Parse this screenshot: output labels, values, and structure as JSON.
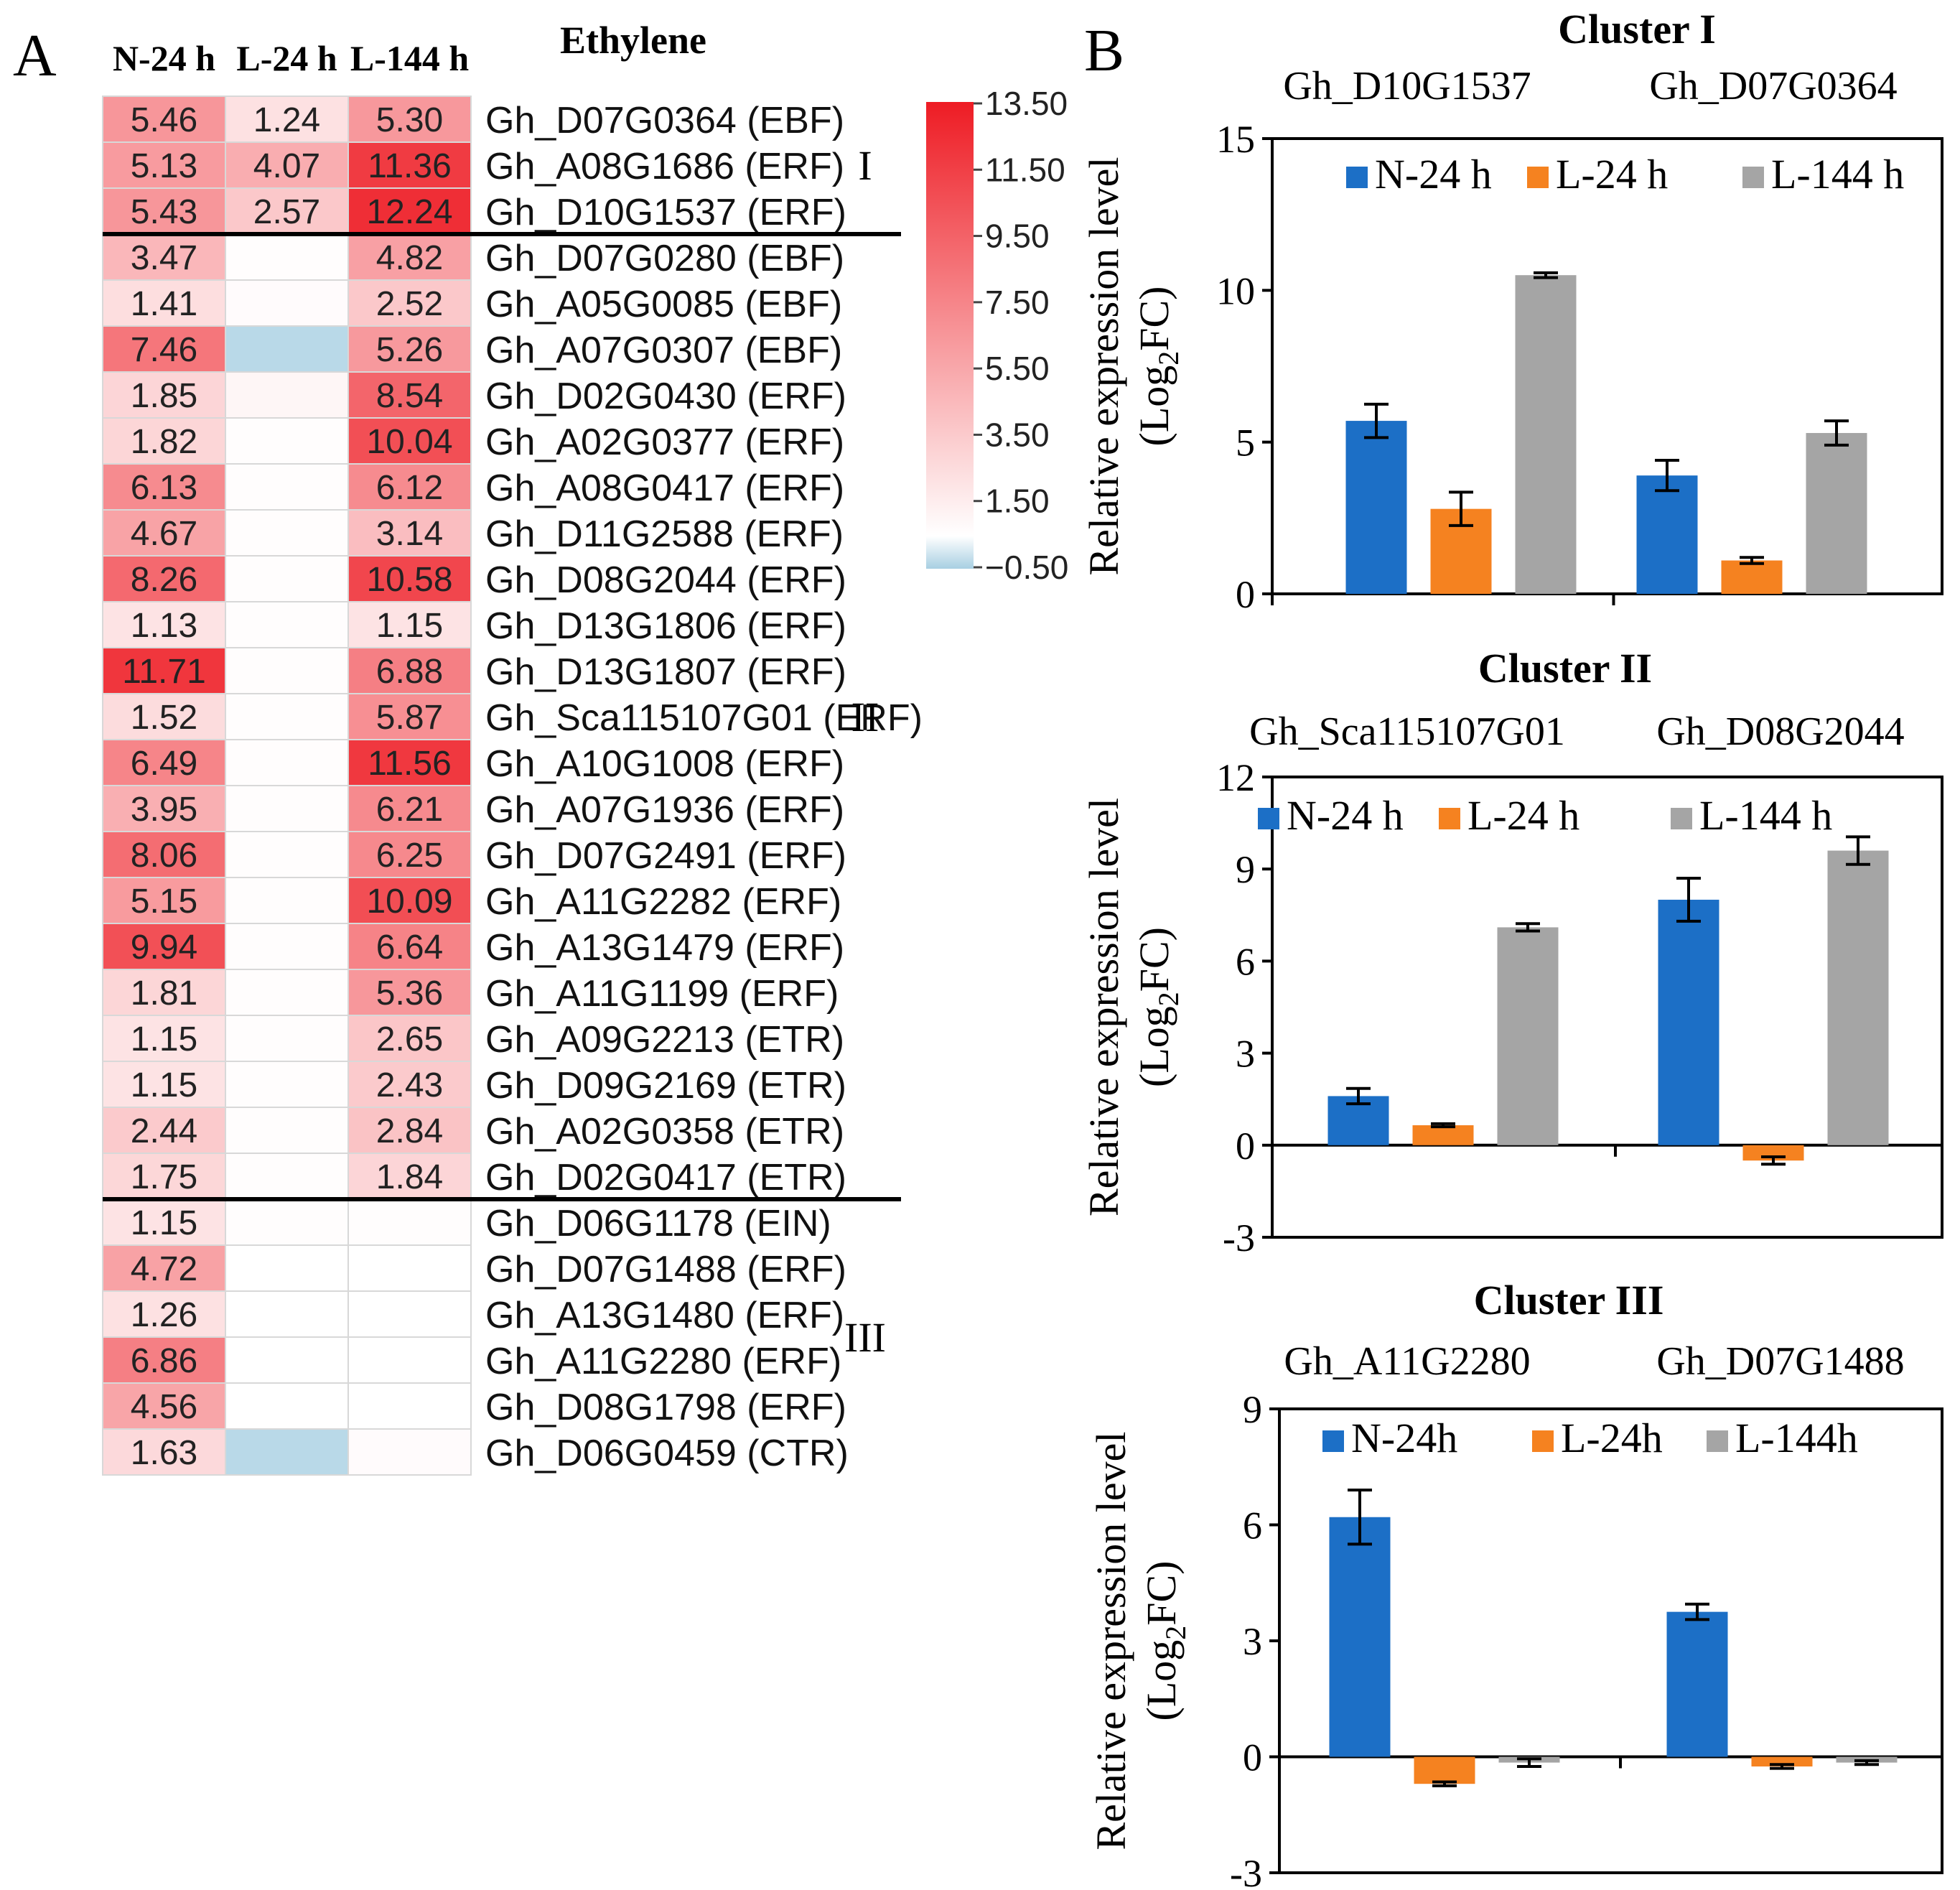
{
  "panel_a": {
    "label": "A",
    "title": "Ethylene",
    "columns": [
      "N-24 h",
      "L-24 h",
      "L-144 h"
    ],
    "scale_max_color": "#ee1c24",
    "scale_min_color": "#a8cfe2",
    "legend_ticks": [
      "13.50",
      "11.50",
      "9.50",
      "7.50",
      "5.50",
      "3.50",
      "1.50",
      "−0.50"
    ],
    "cluster_labels": [
      "I",
      "II",
      "III"
    ],
    "rows": [
      {
        "gene": "Gh_D07G0364 (EBF)",
        "text": [
          "5.46",
          "1.24",
          "5.30"
        ],
        "values": [
          5.46,
          1.24,
          5.3
        ],
        "cluster": "I"
      },
      {
        "gene": "Gh_A08G1686 (ERF)",
        "text": [
          "5.13",
          "4.07",
          "11.36"
        ],
        "values": [
          5.13,
          4.07,
          11.36
        ],
        "cluster": "I"
      },
      {
        "gene": "Gh_D10G1537 (ERF)",
        "text": [
          "5.43",
          "2.57",
          "12.24"
        ],
        "values": [
          5.43,
          2.57,
          12.24
        ],
        "cluster": "I"
      },
      {
        "gene": "Gh_D07G0280 (EBF)",
        "text": [
          "3.47",
          "",
          "4.82"
        ],
        "values": [
          3.47,
          0.05,
          4.82
        ],
        "cluster": "II"
      },
      {
        "gene": "Gh_A05G0085 (EBF)",
        "text": [
          "1.41",
          "",
          "2.52"
        ],
        "values": [
          1.41,
          0.1,
          2.52
        ],
        "cluster": "II"
      },
      {
        "gene": "Gh_A07G0307 (EBF)",
        "text": [
          "7.46",
          "",
          "5.26"
        ],
        "values": [
          7.46,
          -0.4,
          5.26
        ],
        "cluster": "II"
      },
      {
        "gene": "Gh_D02G0430 (ERF)",
        "text": [
          "1.85",
          "",
          "8.54"
        ],
        "values": [
          1.85,
          0.3,
          8.54
        ],
        "cluster": "II"
      },
      {
        "gene": "Gh_A02G0377 (ERF)",
        "text": [
          "1.82",
          "",
          "10.04"
        ],
        "values": [
          1.82,
          0.05,
          10.04
        ],
        "cluster": "II"
      },
      {
        "gene": "Gh_A08G0417 (ERF)",
        "text": [
          "6.13",
          "",
          "6.12"
        ],
        "values": [
          6.13,
          0.05,
          6.12
        ],
        "cluster": "II"
      },
      {
        "gene": "Gh_D11G2588 (ERF)",
        "text": [
          "4.67",
          "",
          "3.14"
        ],
        "values": [
          4.67,
          0.05,
          3.14
        ],
        "cluster": "II"
      },
      {
        "gene": "Gh_D08G2044 (ERF)",
        "text": [
          "8.26",
          "",
          "10.58"
        ],
        "values": [
          8.26,
          0.05,
          10.58
        ],
        "cluster": "II"
      },
      {
        "gene": "Gh_D13G1806 (ERF)",
        "text": [
          "1.13",
          "",
          "1.15"
        ],
        "values": [
          1.13,
          0.05,
          1.15
        ],
        "cluster": "II"
      },
      {
        "gene": "Gh_D13G1807 (ERF)",
        "text": [
          "11.71",
          "",
          "6.88"
        ],
        "values": [
          11.71,
          0.05,
          6.88
        ],
        "cluster": "II"
      },
      {
        "gene": "Gh_Sca115107G01 (ERF)",
        "text": [
          "1.52",
          "",
          "5.87"
        ],
        "values": [
          1.52,
          0.05,
          5.87
        ],
        "cluster": "II"
      },
      {
        "gene": "Gh_A10G1008 (ERF)",
        "text": [
          "6.49",
          "",
          "11.56"
        ],
        "values": [
          6.49,
          0.05,
          11.56
        ],
        "cluster": "II"
      },
      {
        "gene": "Gh_A07G1936 (ERF)",
        "text": [
          "3.95",
          "",
          "6.21"
        ],
        "values": [
          3.95,
          0.05,
          6.21
        ],
        "cluster": "II"
      },
      {
        "gene": "Gh_D07G2491 (ERF)",
        "text": [
          "8.06",
          "",
          "6.25"
        ],
        "values": [
          8.06,
          0.05,
          6.25
        ],
        "cluster": "II"
      },
      {
        "gene": "Gh_A11G2282 (ERF)",
        "text": [
          "5.15",
          "",
          "10.09"
        ],
        "values": [
          5.15,
          0.05,
          10.09
        ],
        "cluster": "II"
      },
      {
        "gene": "Gh_A13G1479 (ERF)",
        "text": [
          "9.94",
          "",
          "6.64"
        ],
        "values": [
          9.94,
          0.05,
          6.64
        ],
        "cluster": "II"
      },
      {
        "gene": "Gh_A11G1199 (ERF)",
        "text": [
          "1.81",
          "",
          "5.36"
        ],
        "values": [
          1.81,
          0.05,
          5.36
        ],
        "cluster": "II"
      },
      {
        "gene": "Gh_A09G2213 (ETR)",
        "text": [
          "1.15",
          "",
          "2.65"
        ],
        "values": [
          1.15,
          0.05,
          2.65
        ],
        "cluster": "II"
      },
      {
        "gene": "Gh_D09G2169 (ETR)",
        "text": [
          "1.15",
          "",
          "2.43"
        ],
        "values": [
          1.15,
          0.05,
          2.43
        ],
        "cluster": "II"
      },
      {
        "gene": "Gh_A02G0358 (ETR)",
        "text": [
          "2.44",
          "",
          "2.84"
        ],
        "values": [
          2.44,
          0.05,
          2.84
        ],
        "cluster": "II"
      },
      {
        "gene": "Gh_D02G0417 (ETR)",
        "text": [
          "1.75",
          "",
          "1.84"
        ],
        "values": [
          1.75,
          0.05,
          1.84
        ],
        "cluster": "II"
      },
      {
        "gene": "Gh_D06G1178 (EIN)",
        "text": [
          "1.15",
          "",
          ""
        ],
        "values": [
          1.15,
          0.05,
          0.05
        ],
        "cluster": "III"
      },
      {
        "gene": "Gh_D07G1488 (ERF)",
        "text": [
          "4.72",
          "",
          ""
        ],
        "values": [
          4.72,
          0.0,
          0.0
        ],
        "cluster": "III"
      },
      {
        "gene": "Gh_A13G1480 (ERF)",
        "text": [
          "1.26",
          "",
          ""
        ],
        "values": [
          1.26,
          0.0,
          0.0
        ],
        "cluster": "III"
      },
      {
        "gene": "Gh_A11G2280 (ERF)",
        "text": [
          "6.86",
          "",
          ""
        ],
        "values": [
          6.86,
          0.0,
          0.0
        ],
        "cluster": "III"
      },
      {
        "gene": "Gh_D08G1798 (ERF)",
        "text": [
          "4.56",
          "",
          ""
        ],
        "values": [
          4.56,
          0.0,
          0.0
        ],
        "cluster": "III"
      },
      {
        "gene": "Gh_D06G0459 (CTR)",
        "text": [
          "1.63",
          "",
          ""
        ],
        "values": [
          1.63,
          -0.4,
          0.1
        ],
        "cluster": "III"
      }
    ]
  },
  "panel_b": {
    "label": "B",
    "series_colors": [
      "#1c6fc6",
      "#f58220",
      "#a5a5a5"
    ],
    "ylabel_line1": "Relative expression level",
    "ylabel_line2_pre": "(Log",
    "ylabel_sub": "2",
    "ylabel_line2_post": "FC)"
  },
  "chart_data": [
    {
      "type": "heatmap",
      "title": "Ethylene",
      "columns": [
        "N-24 h",
        "L-24 h",
        "L-144 h"
      ],
      "color_range": [
        -0.5,
        13.5
      ]
    },
    {
      "type": "bar",
      "title": "Cluster I",
      "categories": [
        "Gh_D10G1537",
        "Gh_D07G0364"
      ],
      "series": [
        {
          "name": "N-24 h",
          "values": [
            5.7,
            3.9
          ],
          "errors": [
            0.55,
            0.5
          ]
        },
        {
          "name": "L-24 h",
          "values": [
            2.8,
            1.1
          ],
          "errors": [
            0.55,
            0.1
          ]
        },
        {
          "name": "L-144 h",
          "values": [
            10.5,
            5.3
          ],
          "errors": [
            0.08,
            0.4
          ]
        }
      ],
      "ylim": [
        0,
        15
      ],
      "yticks": [
        0,
        5,
        10,
        15
      ],
      "ytick_labels": [
        "0",
        "5",
        "10",
        "15"
      ]
    },
    {
      "type": "bar",
      "title": "Cluster II",
      "categories": [
        "Gh_Sca115107G01",
        "Gh_D08G2044"
      ],
      "series": [
        {
          "name": "N-24 h",
          "values": [
            1.6,
            8.0
          ],
          "errors": [
            0.25,
            0.7
          ]
        },
        {
          "name": "L-24 h",
          "values": [
            0.65,
            -0.5
          ],
          "errors": [
            0.05,
            0.12
          ]
        },
        {
          "name": "L-144 h",
          "values": [
            7.1,
            9.6
          ],
          "errors": [
            0.12,
            0.45
          ]
        }
      ],
      "ylim": [
        -3,
        12
      ],
      "yticks": [
        -3,
        0,
        3,
        6,
        9,
        12
      ],
      "ytick_labels": [
        "-3",
        "0",
        "3",
        "6",
        "9",
        "12"
      ]
    },
    {
      "type": "bar",
      "title": "Cluster III",
      "categories": [
        "Gh_A11G2280",
        "Gh_D07G1488"
      ],
      "series": [
        {
          "name": "N-24h",
          "values": [
            6.2,
            3.75
          ],
          "errors": [
            0.7,
            0.2
          ]
        },
        {
          "name": "L-24h",
          "values": [
            -0.7,
            -0.25
          ],
          "errors": [
            0.05,
            0.05
          ]
        },
        {
          "name": "L-144h",
          "values": [
            -0.15,
            -0.15
          ],
          "errors": [
            0.1,
            0.05
          ]
        }
      ],
      "ylim": [
        -3,
        9
      ],
      "yticks": [
        -3,
        0,
        3,
        6,
        9
      ],
      "ytick_labels": [
        "-3",
        "0",
        "3",
        "6",
        "9"
      ]
    }
  ]
}
